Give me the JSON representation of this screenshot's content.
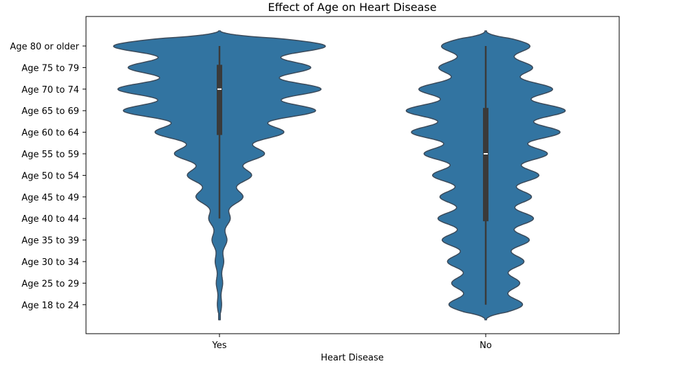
{
  "chart_data": {
    "type": "violin",
    "title": "Effect of Age on Heart Disease",
    "xlabel": "Heart Disease",
    "ylabel": "",
    "categories": [
      "Yes",
      "No"
    ],
    "age_groups": [
      "Age 80 or older",
      "Age 75 to 79",
      "Age 70 to 74",
      "Age 65 to 69",
      "Age 60 to 64",
      "Age 55 to 59",
      "Age 50 to 54",
      "Age 45 to 49",
      "Age 40 to 44",
      "Age 35 to 39",
      "Age 30 to 34",
      "Age 25 to 29",
      "Age 18 to 24"
    ],
    "color": "#3274a1",
    "edge_color": "#3b4a5a",
    "box_color": "#3a3a3a",
    "series": [
      {
        "category": "Yes",
        "density_peaks": [
          1.0,
          0.85,
          0.95,
          0.9,
          0.6,
          0.42,
          0.3,
          0.22,
          0.1,
          0.07,
          0.04,
          0.03,
          0.02
        ],
        "box": {
          "q1": "Age 60 to 64",
          "median": "Age 70 to 74",
          "q3": "Age 75 to 79",
          "whisker_low": "Age 40 to 44",
          "whisker_high": "Age 80 or older"
        }
      },
      {
        "category": "No",
        "density_peaks": [
          0.42,
          0.44,
          0.63,
          0.75,
          0.7,
          0.58,
          0.5,
          0.43,
          0.45,
          0.41,
          0.36,
          0.32,
          0.35
        ],
        "box": {
          "q1": "Age 40 to 44",
          "median": "Age 55 to 59",
          "q3": "Age 65 to 69",
          "whisker_low": "Age 18 to 24",
          "whisker_high": "Age 80 or older"
        }
      }
    ]
  }
}
